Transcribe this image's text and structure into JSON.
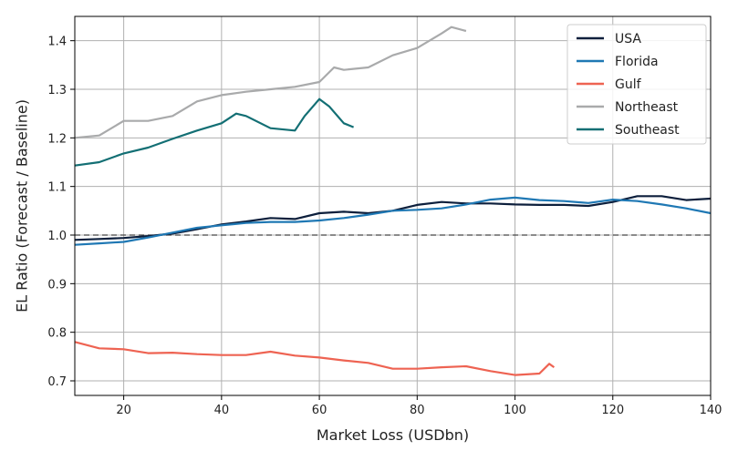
{
  "chart_data": {
    "type": "line",
    "xlabel": "Market Loss (USDbn)",
    "ylabel": "EL Ratio (Forecast / Baseline)",
    "xlim": [
      10,
      140
    ],
    "ylim": [
      0.67,
      1.45
    ],
    "xticks": [
      20,
      40,
      60,
      80,
      100,
      120,
      140
    ],
    "yticks": [
      0.7,
      0.8,
      0.9,
      1.0,
      1.1,
      1.2,
      1.3,
      1.4
    ],
    "grid": true,
    "legend_position": "top-right",
    "reference_line": {
      "y": 1.0,
      "style": "dashed",
      "color": "#444444"
    },
    "series": [
      {
        "name": "USA",
        "color": "#0d1f3c",
        "points": [
          [
            10,
            0.99
          ],
          [
            15,
            0.992
          ],
          [
            20,
            0.994
          ],
          [
            25,
            0.998
          ],
          [
            30,
            1.003
          ],
          [
            35,
            1.012
          ],
          [
            40,
            1.022
          ],
          [
            45,
            1.028
          ],
          [
            50,
            1.035
          ],
          [
            55,
            1.033
          ],
          [
            60,
            1.045
          ],
          [
            65,
            1.048
          ],
          [
            70,
            1.045
          ],
          [
            75,
            1.05
          ],
          [
            80,
            1.062
          ],
          [
            85,
            1.068
          ],
          [
            90,
            1.065
          ],
          [
            95,
            1.065
          ],
          [
            100,
            1.063
          ],
          [
            105,
            1.062
          ],
          [
            110,
            1.062
          ],
          [
            115,
            1.06
          ],
          [
            120,
            1.068
          ],
          [
            125,
            1.08
          ],
          [
            130,
            1.08
          ],
          [
            135,
            1.072
          ],
          [
            140,
            1.075
          ]
        ]
      },
      {
        "name": "Florida",
        "color": "#1f78b4",
        "points": [
          [
            10,
            0.98
          ],
          [
            15,
            0.983
          ],
          [
            20,
            0.986
          ],
          [
            25,
            0.995
          ],
          [
            30,
            1.005
          ],
          [
            35,
            1.015
          ],
          [
            40,
            1.02
          ],
          [
            45,
            1.025
          ],
          [
            50,
            1.027
          ],
          [
            55,
            1.027
          ],
          [
            60,
            1.03
          ],
          [
            65,
            1.035
          ],
          [
            70,
            1.042
          ],
          [
            75,
            1.05
          ],
          [
            80,
            1.052
          ],
          [
            85,
            1.055
          ],
          [
            90,
            1.063
          ],
          [
            95,
            1.073
          ],
          [
            100,
            1.077
          ],
          [
            105,
            1.072
          ],
          [
            110,
            1.07
          ],
          [
            115,
            1.066
          ],
          [
            120,
            1.073
          ],
          [
            125,
            1.07
          ],
          [
            130,
            1.063
          ],
          [
            135,
            1.055
          ],
          [
            140,
            1.045
          ]
        ]
      },
      {
        "name": "Gulf",
        "color": "#ee6352",
        "points": [
          [
            10,
            0.78
          ],
          [
            15,
            0.767
          ],
          [
            20,
            0.765
          ],
          [
            25,
            0.757
          ],
          [
            30,
            0.758
          ],
          [
            35,
            0.755
          ],
          [
            40,
            0.753
          ],
          [
            45,
            0.753
          ],
          [
            50,
            0.76
          ],
          [
            55,
            0.752
          ],
          [
            60,
            0.748
          ],
          [
            65,
            0.742
          ],
          [
            70,
            0.737
          ],
          [
            75,
            0.725
          ],
          [
            80,
            0.725
          ],
          [
            85,
            0.728
          ],
          [
            90,
            0.73
          ],
          [
            95,
            0.72
          ],
          [
            100,
            0.712
          ],
          [
            105,
            0.715
          ],
          [
            107,
            0.735
          ],
          [
            108,
            0.728
          ]
        ]
      },
      {
        "name": "Northeast",
        "color": "#a9aaab",
        "points": [
          [
            10,
            1.2
          ],
          [
            15,
            1.205
          ],
          [
            20,
            1.235
          ],
          [
            25,
            1.235
          ],
          [
            30,
            1.245
          ],
          [
            35,
            1.275
          ],
          [
            40,
            1.288
          ],
          [
            45,
            1.295
          ],
          [
            50,
            1.3
          ],
          [
            55,
            1.305
          ],
          [
            60,
            1.315
          ],
          [
            63,
            1.345
          ],
          [
            65,
            1.34
          ],
          [
            70,
            1.345
          ],
          [
            75,
            1.37
          ],
          [
            80,
            1.385
          ],
          [
            85,
            1.415
          ],
          [
            87,
            1.428
          ],
          [
            90,
            1.42
          ]
        ]
      },
      {
        "name": "Southeast",
        "color": "#136f74",
        "points": [
          [
            10,
            1.143
          ],
          [
            15,
            1.15
          ],
          [
            20,
            1.168
          ],
          [
            25,
            1.18
          ],
          [
            30,
            1.198
          ],
          [
            35,
            1.215
          ],
          [
            40,
            1.23
          ],
          [
            43,
            1.25
          ],
          [
            45,
            1.245
          ],
          [
            50,
            1.22
          ],
          [
            55,
            1.215
          ],
          [
            57,
            1.245
          ],
          [
            60,
            1.28
          ],
          [
            62,
            1.265
          ],
          [
            65,
            1.23
          ],
          [
            67,
            1.222
          ]
        ]
      }
    ]
  }
}
